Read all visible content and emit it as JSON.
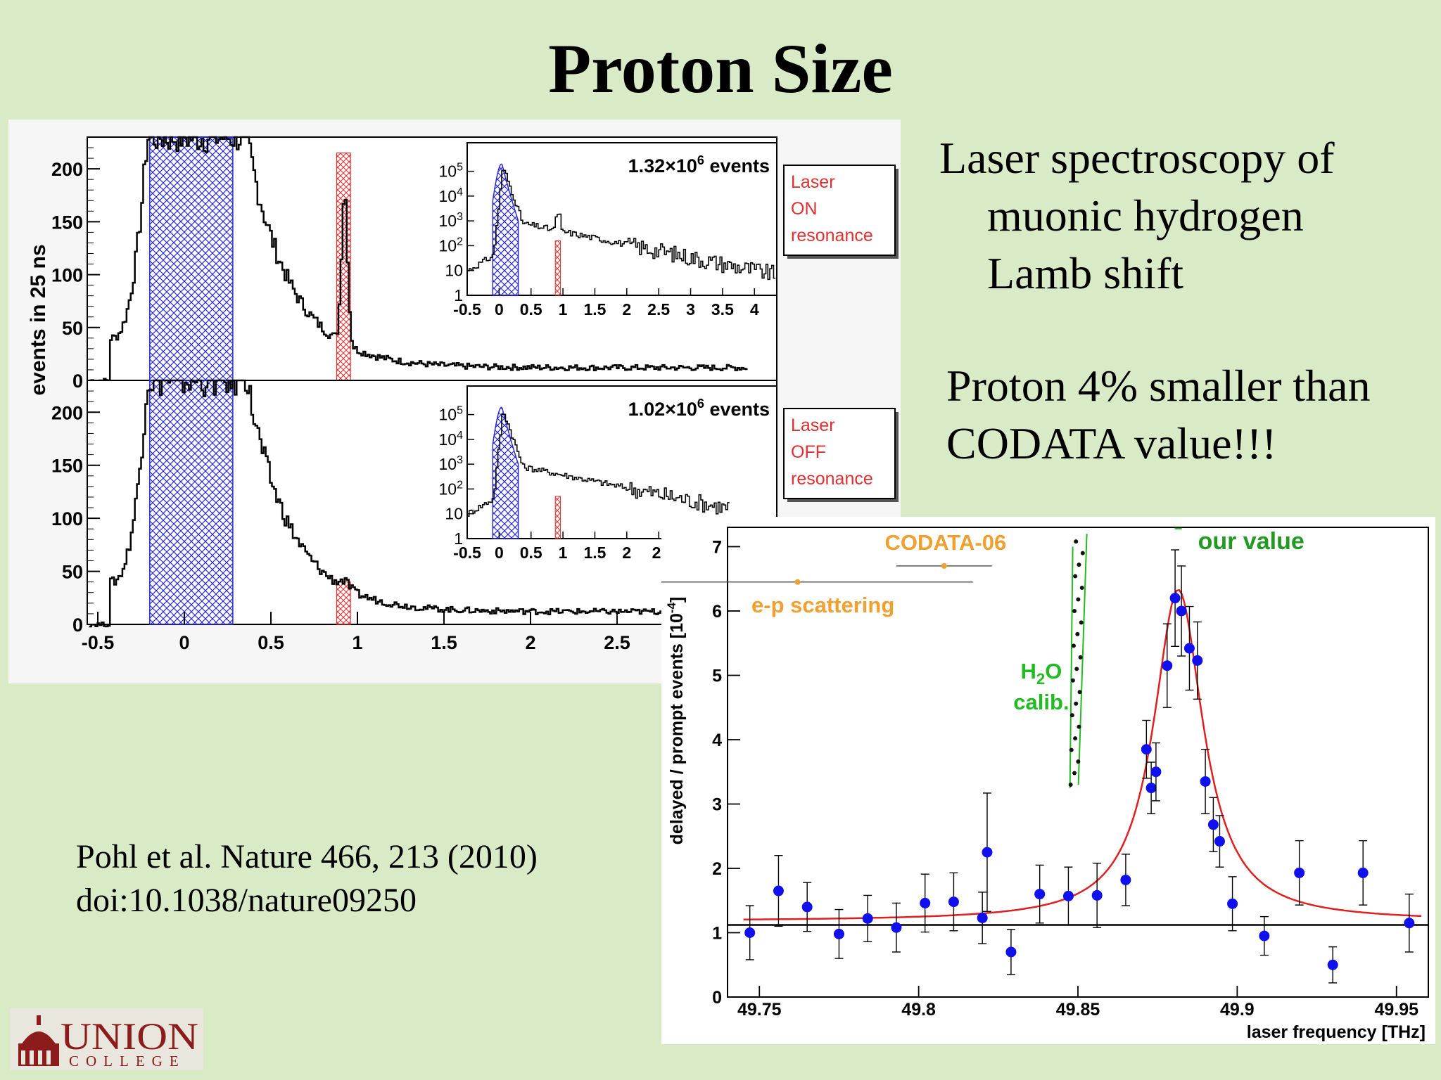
{
  "slide": {
    "title": "Proton Size",
    "intro": [
      "Laser spectroscopy of",
      "muonic hydrogen",
      "Lamb shift"
    ],
    "finding": [
      "Proton 4% smaller than",
      "CODATA value!!!"
    ],
    "reference": [
      "Pohl et al. Nature 466, 213 (2010)",
      "doi:10.1038/nature09250"
    ],
    "logo": {
      "name": "UNION",
      "sub": "COLLEGE"
    }
  },
  "colors": {
    "background": "#d8ebc6",
    "hatch_blue": "#2a2ad0",
    "hatch_red": "#e03030",
    "fit_red": "#e02020",
    "points_blue": "#1010ee",
    "codata_orange": "#f0a030",
    "calib_green": "#22bb22",
    "logo_red": "#8c1b1b"
  },
  "chart_data": [
    {
      "type": "line",
      "ylabel": "events in 25 ns",
      "panels": [
        {
          "id": "laser-on",
          "legend": [
            "Laser",
            "ON",
            "resonance"
          ],
          "inset": {
            "count_label": "1.32×10",
            "count_exp": "6",
            "count_suffix": " events",
            "yticks": [
              {
                "m": "10",
                "e": "5"
              },
              {
                "m": "10",
                "e": "4"
              },
              {
                "m": "10",
                "e": "3"
              },
              {
                "m": "10",
                "e": "2"
              },
              {
                "m": "10",
                "e": ""
              },
              {
                "m": "1",
                "e": ""
              }
            ],
            "xticks": [
              "-0.5",
              "0",
              "0.5",
              "1",
              "1.5",
              "2",
              "2.5",
              "3",
              "3.5",
              "4"
            ]
          },
          "yticks": [
            "0",
            "50",
            "100",
            "150",
            "200"
          ],
          "ylim": [
            0,
            230
          ],
          "peak_near_0_9": 215
        },
        {
          "id": "laser-off",
          "legend": [
            "Laser",
            "OFF",
            "resonance"
          ],
          "inset": {
            "count_label": "1.02×10",
            "count_exp": "6",
            "count_suffix": " events",
            "yticks": [
              {
                "m": "10",
                "e": "5"
              },
              {
                "m": "10",
                "e": "4"
              },
              {
                "m": "10",
                "e": "3"
              },
              {
                "m": "10",
                "e": "2"
              },
              {
                "m": "10",
                "e": ""
              },
              {
                "m": "1",
                "e": ""
              }
            ],
            "xticks": [
              "-0.5",
              "0",
              "0.5",
              "1",
              "1.5",
              "2",
              "2."
            ]
          },
          "yticks": [
            "0",
            "50",
            "100",
            "150",
            "200"
          ],
          "ylim": [
            0,
            230
          ],
          "xticks": [
            "-0.5",
            "0",
            "0.5",
            "1",
            "1.5",
            "2",
            "2.5"
          ],
          "peak_near_0_9": 40
        }
      ]
    },
    {
      "type": "scatter",
      "xlabel": "laser frequency [THz]",
      "ylabel": "delayed / prompt events [10",
      "ylabel_exp": "-4",
      "ylabel_end": "]",
      "xlim": [
        49.74,
        49.96
      ],
      "ylim": [
        0,
        7.3
      ],
      "xticks": [
        "49.75",
        "49.8",
        "49.85",
        "49.9",
        "49.95"
      ],
      "yticks": [
        "0",
        "1",
        "2",
        "3",
        "4",
        "5",
        "6",
        "7"
      ],
      "baseline": 1.12,
      "labels": {
        "codata": "CODATA-06",
        "ep": "e-p scattering",
        "ours": "our value",
        "h2o_pre": "H",
        "h2o_sub": "2",
        "h2o_post": "O",
        "calib": "calib."
      },
      "codata": {
        "x": 49.808,
        "y": 6.7,
        "err": 0.015
      },
      "ep": {
        "x": 49.762,
        "y": 6.45,
        "err": 0.055
      },
      "ours": {
        "x": 49.8815,
        "y": 7.28
      },
      "h2o_x": 49.8497,
      "fit": {
        "center": 49.8815,
        "width": 0.019,
        "amp": 5.15,
        "base": 1.18
      },
      "points": [
        {
          "x": 49.747,
          "y": 1.0,
          "e": 0.42
        },
        {
          "x": 49.756,
          "y": 1.65,
          "e": 0.55
        },
        {
          "x": 49.765,
          "y": 1.4,
          "e": 0.38
        },
        {
          "x": 49.775,
          "y": 0.98,
          "e": 0.38
        },
        {
          "x": 49.784,
          "y": 1.22,
          "e": 0.36
        },
        {
          "x": 49.793,
          "y": 1.08,
          "e": 0.38
        },
        {
          "x": 49.802,
          "y": 1.46,
          "e": 0.45
        },
        {
          "x": 49.811,
          "y": 1.48,
          "e": 0.45
        },
        {
          "x": 49.82,
          "y": 1.23,
          "e": 0.4
        },
        {
          "x": 49.8215,
          "y": 2.25,
          "e": 0.92
        },
        {
          "x": 49.829,
          "y": 0.7,
          "e": 0.35
        },
        {
          "x": 49.838,
          "y": 1.6,
          "e": 0.45
        },
        {
          "x": 49.847,
          "y": 1.57,
          "e": 0.45
        },
        {
          "x": 49.856,
          "y": 1.58,
          "e": 0.5
        },
        {
          "x": 49.865,
          "y": 1.82,
          "e": 0.4
        },
        {
          "x": 49.8715,
          "y": 3.85,
          "e": 0.45
        },
        {
          "x": 49.873,
          "y": 3.25,
          "e": 0.4
        },
        {
          "x": 49.8745,
          "y": 3.5,
          "e": 0.45
        },
        {
          "x": 49.878,
          "y": 5.15,
          "e": 0.65
        },
        {
          "x": 49.8805,
          "y": 6.2,
          "e": 0.75
        },
        {
          "x": 49.8825,
          "y": 6.0,
          "e": 0.7
        },
        {
          "x": 49.885,
          "y": 5.42,
          "e": 0.65
        },
        {
          "x": 49.8875,
          "y": 5.23,
          "e": 0.6
        },
        {
          "x": 49.89,
          "y": 3.35,
          "e": 0.5
        },
        {
          "x": 49.8925,
          "y": 2.68,
          "e": 0.42
        },
        {
          "x": 49.8945,
          "y": 2.42,
          "e": 0.4
        },
        {
          "x": 49.8985,
          "y": 1.45,
          "e": 0.42
        },
        {
          "x": 49.9085,
          "y": 0.95,
          "e": 0.3
        },
        {
          "x": 49.9195,
          "y": 1.93,
          "e": 0.5
        },
        {
          "x": 49.93,
          "y": 0.5,
          "e": 0.28
        },
        {
          "x": 49.9395,
          "y": 1.93,
          "e": 0.5
        },
        {
          "x": 49.954,
          "y": 1.15,
          "e": 0.45
        }
      ]
    }
  ]
}
